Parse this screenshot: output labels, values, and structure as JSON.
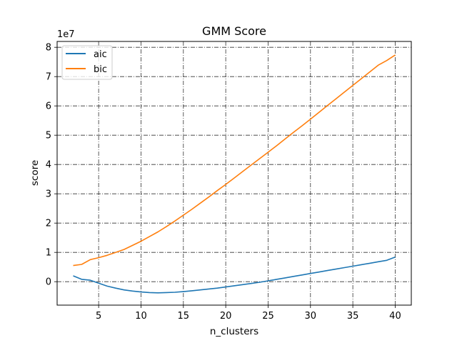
{
  "chart_data": {
    "type": "line",
    "title": "GMM Score",
    "xlabel": "n_clusters",
    "ylabel": "score",
    "offset_text": "1e7",
    "xlim": [
      0.1,
      41.9
    ],
    "ylim": [
      -0.8,
      8.2
    ],
    "x_ticks": [
      5,
      10,
      15,
      20,
      25,
      30,
      35,
      40
    ],
    "x_tick_labels": [
      "5",
      "10",
      "15",
      "20",
      "25",
      "30",
      "35",
      "40"
    ],
    "y_ticks": [
      0,
      1,
      2,
      3,
      4,
      5,
      6,
      7,
      8
    ],
    "y_tick_labels": [
      "0",
      "1",
      "2",
      "3",
      "4",
      "5",
      "6",
      "7",
      "8"
    ],
    "y_scale_note": "values in units of 1e7",
    "grid": true,
    "legend_position": "upper-left",
    "x": [
      2,
      3,
      4,
      5,
      6,
      7,
      8,
      9,
      10,
      11,
      12,
      13,
      14,
      15,
      16,
      17,
      18,
      19,
      20,
      21,
      22,
      23,
      24,
      25,
      26,
      27,
      28,
      29,
      30,
      31,
      32,
      33,
      34,
      35,
      36,
      37,
      38,
      39,
      40
    ],
    "series": [
      {
        "name": "aic",
        "color": "#1f77b4",
        "values": [
          0.2,
          0.08,
          0.05,
          -0.05,
          -0.15,
          -0.22,
          -0.28,
          -0.32,
          -0.35,
          -0.37,
          -0.38,
          -0.37,
          -0.36,
          -0.34,
          -0.31,
          -0.28,
          -0.25,
          -0.22,
          -0.18,
          -0.14,
          -0.1,
          -0.06,
          -0.02,
          0.03,
          0.08,
          0.13,
          0.18,
          0.23,
          0.28,
          0.33,
          0.38,
          0.43,
          0.48,
          0.53,
          0.58,
          0.63,
          0.68,
          0.73,
          0.84
        ]
      },
      {
        "name": "bic",
        "color": "#ff7f0e",
        "values": [
          0.55,
          0.59,
          0.75,
          0.82,
          0.9,
          1.0,
          1.1,
          1.24,
          1.38,
          1.54,
          1.7,
          1.88,
          2.07,
          2.27,
          2.47,
          2.68,
          2.89,
          3.11,
          3.32,
          3.54,
          3.76,
          3.98,
          4.2,
          4.42,
          4.64,
          4.87,
          5.1,
          5.32,
          5.55,
          5.78,
          6.01,
          6.24,
          6.47,
          6.7,
          6.93,
          7.16,
          7.39,
          7.55,
          7.74
        ]
      }
    ]
  }
}
